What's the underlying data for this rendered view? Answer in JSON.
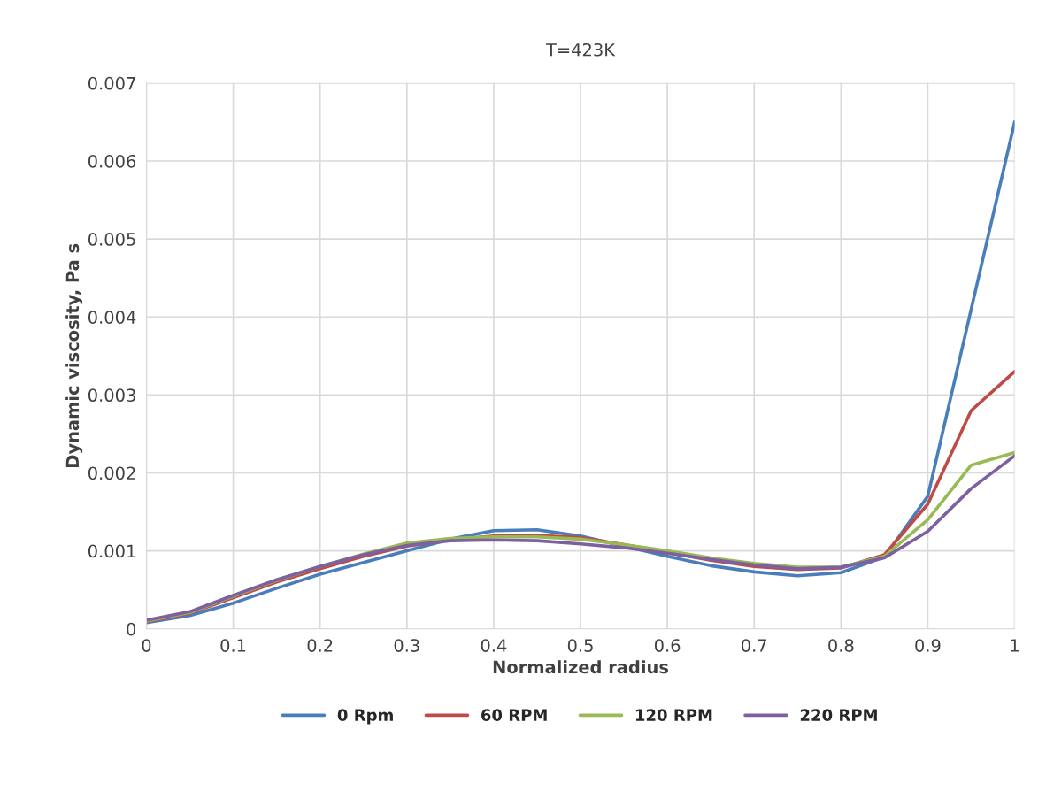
{
  "chart_data": {
    "type": "line",
    "title": "T=423K",
    "xlabel": "Normalized radius",
    "ylabel": "Dynamic viscosity, Pa s",
    "x": [
      0,
      0.05,
      0.1,
      0.15,
      0.2,
      0.25,
      0.3,
      0.35,
      0.4,
      0.45,
      0.5,
      0.55,
      0.6,
      0.65,
      0.7,
      0.75,
      0.8,
      0.85,
      0.9,
      0.95,
      1
    ],
    "series": [
      {
        "name": "0 Rpm",
        "color": "#4a7ebb",
        "values": [
          8e-05,
          0.00017,
          0.00033,
          0.00052,
          0.0007,
          0.00085,
          0.001,
          0.00115,
          0.00126,
          0.00127,
          0.00119,
          0.00106,
          0.00093,
          0.00081,
          0.00073,
          0.00068,
          0.00072,
          0.00092,
          0.0017,
          0.0041,
          0.0065
        ]
      },
      {
        "name": "60 RPM",
        "color": "#be4b48",
        "values": [
          9e-05,
          0.0002,
          0.0004,
          0.0006,
          0.00077,
          0.00093,
          0.00106,
          0.00114,
          0.00119,
          0.0012,
          0.00117,
          0.00108,
          0.00098,
          0.00088,
          0.0008,
          0.00076,
          0.00078,
          0.00095,
          0.0016,
          0.0028,
          0.0033
        ]
      },
      {
        "name": "120 RPM",
        "color": "#98b954",
        "values": [
          0.0001,
          0.00021,
          0.00042,
          0.00062,
          0.0008,
          0.00096,
          0.0011,
          0.00116,
          0.00118,
          0.00118,
          0.00115,
          0.00108,
          0.001,
          0.00091,
          0.00084,
          0.00079,
          0.00079,
          0.00093,
          0.0014,
          0.0021,
          0.00226
        ]
      },
      {
        "name": "220 RPM",
        "color": "#7d60a0",
        "values": [
          0.00011,
          0.00022,
          0.00043,
          0.00063,
          0.0008,
          0.00095,
          0.00107,
          0.00113,
          0.00114,
          0.00113,
          0.00109,
          0.00104,
          0.00097,
          0.00089,
          0.00082,
          0.00077,
          0.00079,
          0.00091,
          0.00125,
          0.0018,
          0.00222
        ]
      }
    ],
    "xlim": [
      0,
      1
    ],
    "xticks": [
      0,
      0.1,
      0.2,
      0.3,
      0.4,
      0.5,
      0.6,
      0.7,
      0.8,
      0.9,
      1
    ],
    "ylim": [
      0,
      0.007
    ],
    "yticks": [
      0,
      0.001,
      0.002,
      0.003,
      0.004,
      0.005,
      0.006,
      0.007
    ],
    "grid": true,
    "legend": "bottom",
    "marker": "none",
    "line_style": "solid"
  }
}
